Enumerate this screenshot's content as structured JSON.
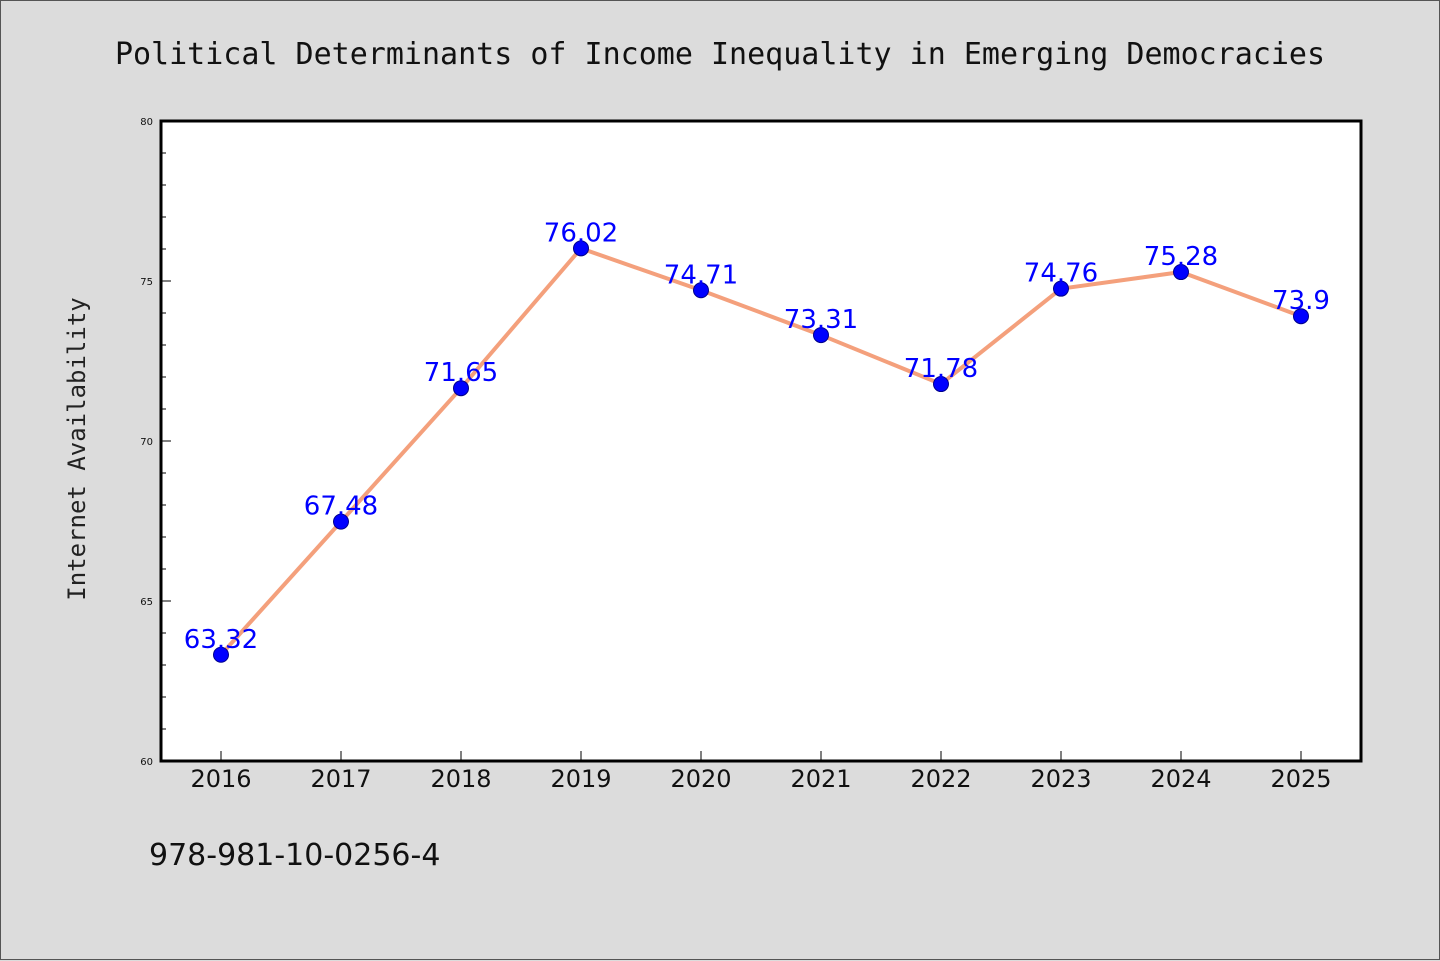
{
  "chart_data": {
    "type": "line",
    "title": "Political Determinants of Income Inequality in Emerging Democracies",
    "xlabel": "",
    "ylabel": "Internet Availability",
    "categories": [
      "2016",
      "2017",
      "2018",
      "2019",
      "2020",
      "2021",
      "2022",
      "2023",
      "2024",
      "2025"
    ],
    "series": [
      {
        "values": [
          63.32,
          67.48,
          71.65,
          76.02,
          74.71,
          73.31,
          71.78,
          74.76,
          75.28,
          73.9
        ],
        "labels": [
          "63.32",
          "67.48",
          "71.65",
          "76.02",
          "74.71",
          "73.31",
          "71.78",
          "74.76",
          "75.28",
          "73.9"
        ],
        "line_color": "#f4a07c",
        "marker_color": "#0000ff"
      }
    ],
    "ylim": [
      60,
      80
    ],
    "y_ticks": [
      "60",
      "65",
      "70",
      "75",
      "80"
    ],
    "grid": false,
    "legend": "none"
  },
  "footer": {
    "isbn": "978-981-10-0256-4"
  },
  "colors": {
    "background": "#dcdcdc",
    "plot_background": "#ffffff",
    "data_label": "#0000ff"
  }
}
